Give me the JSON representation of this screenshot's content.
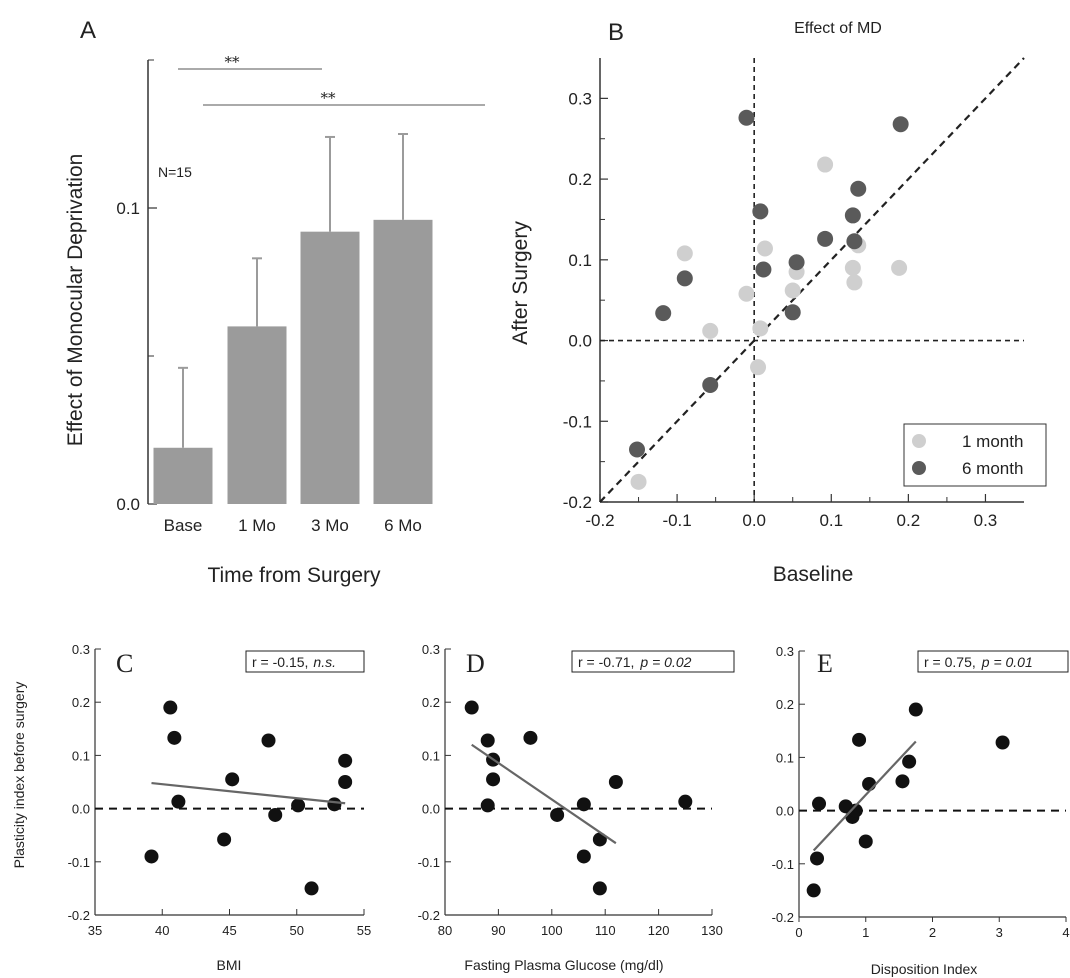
{
  "chart_data": [
    {
      "id": "A",
      "type": "bar",
      "panel_label": "A",
      "title": "",
      "xlabel": "Time from Surgery",
      "ylabel": "Effect of Monocular Deprivation",
      "categories": [
        "Base",
        "1 Mo",
        "3 Mo",
        "6 Mo"
      ],
      "values": [
        0.019,
        0.06,
        0.092,
        0.096
      ],
      "errors": [
        0.027,
        0.023,
        0.032,
        0.029
      ],
      "ylim": [
        0.0,
        0.15
      ],
      "yticks": [
        0.0,
        0.1
      ],
      "ytick_labels": [
        "0.0",
        "0.1"
      ],
      "annotation": "N=15",
      "significance": [
        {
          "from": "Base",
          "to": "3 Mo",
          "label": "**"
        },
        {
          "from": "1 Mo",
          "to": "6 Mo",
          "label": "**"
        }
      ],
      "bar_color": "#9b9b9b"
    },
    {
      "id": "B",
      "type": "scatter",
      "panel_label": "B",
      "title": "Effect of MD",
      "xlabel": "Baseline",
      "ylabel": "After Surgery",
      "xlim": [
        -0.2,
        0.35
      ],
      "ylim": [
        -0.2,
        0.35
      ],
      "xticks": [
        -0.2,
        -0.1,
        0.0,
        0.1,
        0.2,
        0.3
      ],
      "xtick_labels": [
        "-0.2",
        "-0.1",
        "0.0",
        "0.1",
        "0.2",
        "0.3"
      ],
      "yticks": [
        -0.2,
        -0.1,
        0.0,
        0.1,
        0.2,
        0.3
      ],
      "ytick_labels": [
        "-0.2",
        "-0.1",
        "0.0",
        "0.1",
        "0.2",
        "0.3"
      ],
      "legend_position": "bottom-right",
      "series": [
        {
          "name": "1 month",
          "color": "#cfcfcf",
          "points": [
            [
              -0.15,
              -0.175
            ],
            [
              -0.09,
              0.108
            ],
            [
              -0.057,
              0.012
            ],
            [
              -0.01,
              0.058
            ],
            [
              0.005,
              -0.033
            ],
            [
              0.008,
              0.015
            ],
            [
              0.014,
              0.114
            ],
            [
              0.05,
              0.062
            ],
            [
              0.055,
              0.085
            ],
            [
              0.092,
              0.218
            ],
            [
              0.128,
              0.09
            ],
            [
              0.13,
              0.072
            ],
            [
              0.135,
              0.118
            ],
            [
              0.188,
              0.09
            ]
          ]
        },
        {
          "name": "6 month",
          "color": "#5a5a5a",
          "points": [
            [
              -0.152,
              -0.135
            ],
            [
              -0.09,
              0.077
            ],
            [
              -0.118,
              0.034
            ],
            [
              -0.057,
              -0.055
            ],
            [
              -0.01,
              0.276
            ],
            [
              0.008,
              0.16
            ],
            [
              0.012,
              0.088
            ],
            [
              0.05,
              0.035
            ],
            [
              0.055,
              0.097
            ],
            [
              0.092,
              0.126
            ],
            [
              0.128,
              0.155
            ],
            [
              0.13,
              0.123
            ],
            [
              0.135,
              0.188
            ],
            [
              0.19,
              0.268
            ]
          ]
        }
      ],
      "reference_lines": [
        "identity",
        "x=0",
        "y=0"
      ]
    },
    {
      "id": "C",
      "type": "scatter",
      "panel_label": "C",
      "xlabel": "BMI",
      "ylabel": "Plasticity index before surgery",
      "xlim": [
        35,
        55
      ],
      "ylim": [
        -0.2,
        0.3
      ],
      "xticks": [
        35,
        40,
        45,
        50,
        55
      ],
      "xtick_labels": [
        "35",
        "40",
        "45",
        "50",
        "55"
      ],
      "yticks": [
        -0.2,
        -0.1,
        0.0,
        0.1,
        0.2,
        0.3
      ],
      "ytick_labels": [
        "-0.2",
        "-0.1",
        "0.0",
        "0.1",
        "0.2",
        "0.3"
      ],
      "stat_label": "r = -0.15,",
      "stat_sig": "n.s.",
      "points": [
        [
          39.2,
          -0.09
        ],
        [
          40.6,
          0.19
        ],
        [
          40.9,
          0.133
        ],
        [
          41.2,
          0.013
        ],
        [
          44.6,
          -0.058
        ],
        [
          45.2,
          0.055
        ],
        [
          47.9,
          0.128
        ],
        [
          48.4,
          -0.012
        ],
        [
          50.1,
          0.006
        ],
        [
          51.1,
          -0.15
        ],
        [
          52.8,
          0.008
        ],
        [
          53.6,
          0.09
        ],
        [
          53.6,
          0.05
        ]
      ],
      "fit": [
        [
          39.2,
          0.048
        ],
        [
          53.6,
          0.01
        ]
      ]
    },
    {
      "id": "D",
      "type": "scatter",
      "panel_label": "D",
      "xlabel": "Fasting Plasma Glucose (mg/dl)",
      "ylabel": "",
      "xlim": [
        80,
        130
      ],
      "ylim": [
        -0.2,
        0.3
      ],
      "xticks": [
        80,
        90,
        100,
        110,
        120,
        130
      ],
      "xtick_labels": [
        "80",
        "90",
        "100",
        "110",
        "120",
        "130"
      ],
      "yticks": [
        -0.2,
        -0.1,
        0.0,
        0.1,
        0.2,
        0.3
      ],
      "ytick_labels": [
        "-0.2",
        "-0.1",
        "0.0",
        "0.1",
        "0.2",
        "0.3"
      ],
      "stat_label": "r = -0.71,",
      "stat_p": "p = 0.02",
      "points": [
        [
          85,
          0.19
        ],
        [
          88,
          0.128
        ],
        [
          88,
          0.006
        ],
        [
          89,
          0.092
        ],
        [
          89,
          0.055
        ],
        [
          96,
          0.133
        ],
        [
          101,
          -0.012
        ],
        [
          106,
          0.008
        ],
        [
          106,
          -0.09
        ],
        [
          109,
          -0.058
        ],
        [
          109,
          -0.15
        ],
        [
          112,
          0.05
        ],
        [
          125,
          0.013
        ]
      ],
      "fit": [
        [
          85,
          0.12
        ],
        [
          112,
          -0.065
        ]
      ]
    },
    {
      "id": "E",
      "type": "scatter",
      "panel_label": "E",
      "xlabel": "Disposition Index",
      "ylabel": "",
      "xlim": [
        0,
        4
      ],
      "ylim": [
        -0.2,
        0.3
      ],
      "xticks": [
        0,
        1,
        2,
        3,
        4
      ],
      "xtick_labels": [
        "0",
        "1",
        "2",
        "3",
        "4"
      ],
      "yticks": [
        -0.2,
        -0.1,
        0.0,
        0.1,
        0.2,
        0.3
      ],
      "ytick_labels": [
        "-0.2",
        "-0.1",
        "0.0",
        "0.1",
        "0.2",
        "0.3"
      ],
      "stat_label": "r = 0.75,",
      "stat_p": "p = 0.01",
      "points": [
        [
          0.22,
          -0.15
        ],
        [
          0.27,
          -0.09
        ],
        [
          0.3,
          0.013
        ],
        [
          0.7,
          0.008
        ],
        [
          0.8,
          -0.012
        ],
        [
          0.85,
          0.0
        ],
        [
          0.9,
          0.133
        ],
        [
          1.0,
          -0.058
        ],
        [
          1.05,
          0.05
        ],
        [
          1.55,
          0.055
        ],
        [
          1.65,
          0.092
        ],
        [
          1.75,
          0.19
        ],
        [
          3.05,
          0.128
        ]
      ],
      "fit": [
        [
          0.22,
          -0.075
        ],
        [
          1.75,
          0.13
        ]
      ]
    }
  ]
}
